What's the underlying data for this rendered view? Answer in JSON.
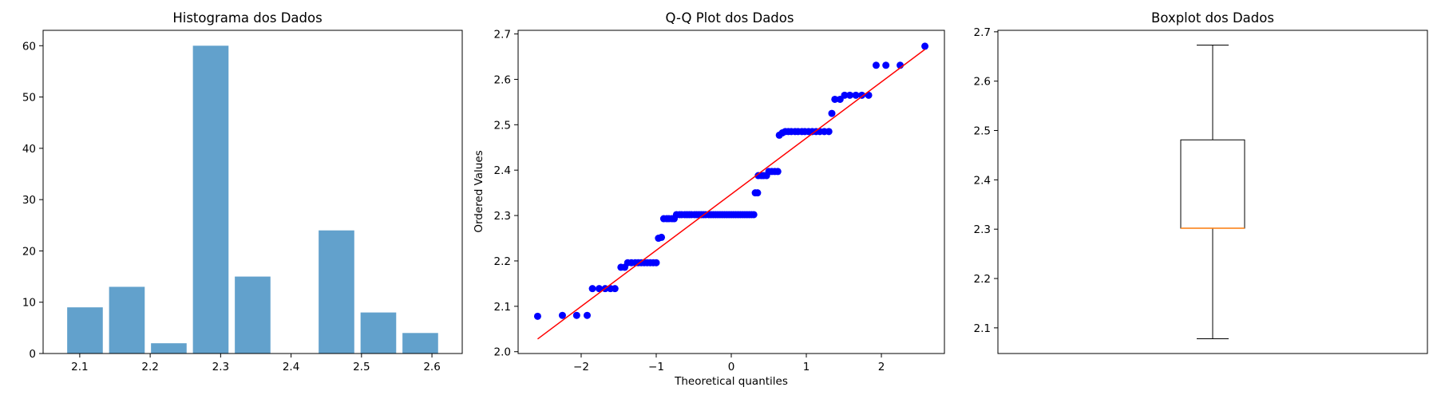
{
  "colors": {
    "hist_bar": "#62a1cc",
    "qq_points": "#0000ff",
    "qq_line": "#ff0000",
    "box_median": "#ff7f0e",
    "axes": "#000000"
  },
  "chart_data": [
    {
      "type": "bar",
      "title": "Histograma dos Dados",
      "xlabel": "",
      "ylabel": "",
      "bins": [
        {
          "x0": 2.0777,
          "x1": 2.1372,
          "count": 9
        },
        {
          "x0": 2.1372,
          "x1": 2.1967,
          "count": 13
        },
        {
          "x0": 2.1967,
          "x1": 2.2562,
          "count": 2
        },
        {
          "x0": 2.2562,
          "x1": 2.3157,
          "count": 60
        },
        {
          "x0": 2.3157,
          "x1": 2.3752,
          "count": 15
        },
        {
          "x0": 2.3752,
          "x1": 2.4347,
          "count": 0
        },
        {
          "x0": 2.4347,
          "x1": 2.4942,
          "count": 24
        },
        {
          "x0": 2.4942,
          "x1": 2.5537,
          "count": 8
        },
        {
          "x0": 2.5537,
          "x1": 2.6132,
          "count": 4
        }
      ],
      "xticks": [
        "2.1",
        "2.2",
        "2.3",
        "2.4",
        "2.5",
        "2.6"
      ],
      "yticks": [
        "0",
        "10",
        "20",
        "30",
        "40",
        "50",
        "60"
      ],
      "xlim": [
        2.048,
        2.643
      ],
      "ylim": [
        0,
        63
      ]
    },
    {
      "type": "scatter",
      "title": "Q-Q Plot dos Dados",
      "xlabel": "Theoretical quantiles",
      "ylabel": "Ordered Values",
      "points": [
        [
          -2.58,
          2.078
        ],
        [
          -2.25,
          2.08
        ],
        [
          -2.06,
          2.08
        ],
        [
          -1.92,
          2.08
        ],
        [
          -1.85,
          2.139
        ],
        [
          -1.76,
          2.139
        ],
        [
          -1.68,
          2.139
        ],
        [
          -1.61,
          2.139
        ],
        [
          -1.55,
          2.139
        ],
        [
          -1.47,
          2.186
        ],
        [
          -1.42,
          2.186
        ],
        [
          -1.38,
          2.196
        ],
        [
          -1.33,
          2.196
        ],
        [
          -1.28,
          2.196
        ],
        [
          -1.24,
          2.196
        ],
        [
          -1.2,
          2.196
        ],
        [
          -1.16,
          2.196
        ],
        [
          -1.12,
          2.196
        ],
        [
          -1.08,
          2.196
        ],
        [
          -1.04,
          2.196
        ],
        [
          -1.0,
          2.196
        ],
        [
          -0.97,
          2.25
        ],
        [
          -0.93,
          2.252
        ],
        [
          -0.9,
          2.293
        ],
        [
          -0.86,
          2.293
        ],
        [
          -0.83,
          2.293
        ],
        [
          -0.79,
          2.293
        ],
        [
          -0.76,
          2.293
        ],
        [
          -0.73,
          2.302
        ],
        [
          -0.69,
          2.302
        ],
        [
          -0.66,
          2.302
        ],
        [
          -0.62,
          2.302
        ],
        [
          -0.59,
          2.302
        ],
        [
          -0.56,
          2.302
        ],
        [
          -0.53,
          2.302
        ],
        [
          -0.49,
          2.302
        ],
        [
          -0.46,
          2.302
        ],
        [
          -0.43,
          2.302
        ],
        [
          -0.4,
          2.302
        ],
        [
          -0.37,
          2.302
        ],
        [
          -0.34,
          2.302
        ],
        [
          -0.3,
          2.302
        ],
        [
          -0.27,
          2.302
        ],
        [
          -0.24,
          2.302
        ],
        [
          -0.21,
          2.302
        ],
        [
          -0.18,
          2.302
        ],
        [
          -0.15,
          2.302
        ],
        [
          -0.12,
          2.302
        ],
        [
          -0.09,
          2.302
        ],
        [
          -0.06,
          2.302
        ],
        [
          -0.03,
          2.302
        ],
        [
          0.0,
          2.302
        ],
        [
          0.03,
          2.302
        ],
        [
          0.06,
          2.302
        ],
        [
          0.09,
          2.302
        ],
        [
          0.12,
          2.302
        ],
        [
          0.15,
          2.302
        ],
        [
          0.18,
          2.302
        ],
        [
          0.21,
          2.302
        ],
        [
          0.24,
          2.302
        ],
        [
          0.27,
          2.302
        ],
        [
          0.3,
          2.302
        ],
        [
          0.32,
          2.35
        ],
        [
          0.35,
          2.35
        ],
        [
          0.36,
          2.388
        ],
        [
          0.4,
          2.388
        ],
        [
          0.43,
          2.388
        ],
        [
          0.47,
          2.388
        ],
        [
          0.5,
          2.397
        ],
        [
          0.54,
          2.397
        ],
        [
          0.58,
          2.397
        ],
        [
          0.62,
          2.397
        ],
        [
          0.64,
          2.477
        ],
        [
          0.68,
          2.482
        ],
        [
          0.72,
          2.485
        ],
        [
          0.76,
          2.485
        ],
        [
          0.8,
          2.485
        ],
        [
          0.85,
          2.485
        ],
        [
          0.89,
          2.485
        ],
        [
          0.94,
          2.485
        ],
        [
          0.98,
          2.485
        ],
        [
          1.03,
          2.485
        ],
        [
          1.08,
          2.485
        ],
        [
          1.13,
          2.485
        ],
        [
          1.18,
          2.485
        ],
        [
          1.24,
          2.485
        ],
        [
          1.3,
          2.485
        ],
        [
          1.34,
          2.525
        ],
        [
          1.38,
          2.556
        ],
        [
          1.45,
          2.556
        ],
        [
          1.51,
          2.565
        ],
        [
          1.58,
          2.565
        ],
        [
          1.66,
          2.565
        ],
        [
          1.74,
          2.565
        ],
        [
          1.83,
          2.565
        ],
        [
          1.93,
          2.631
        ],
        [
          2.06,
          2.631
        ],
        [
          2.25,
          2.631
        ],
        [
          2.58,
          2.673
        ]
      ],
      "fit_line": {
        "x": [
          -2.58,
          2.58
        ],
        "y": [
          2.028,
          2.666
        ]
      },
      "xticks": [
        "−2",
        "−1",
        "0",
        "1",
        "2"
      ],
      "yticks": [
        "2.0",
        "2.1",
        "2.2",
        "2.3",
        "2.4",
        "2.5",
        "2.6",
        "2.7"
      ],
      "xlim": [
        -2.84,
        2.84
      ],
      "ylim": [
        1.996,
        2.708
      ]
    },
    {
      "type": "box",
      "title": "Boxplot dos Dados",
      "xlabel": "",
      "ylabel": "",
      "whisker_low": 2.078,
      "q1": 2.302,
      "median": 2.302,
      "q3": 2.481,
      "whisker_high": 2.673,
      "yticks": [
        "2.1",
        "2.2",
        "2.3",
        "2.4",
        "2.5",
        "2.6",
        "2.7"
      ],
      "ylim": [
        2.048,
        2.703
      ]
    }
  ]
}
